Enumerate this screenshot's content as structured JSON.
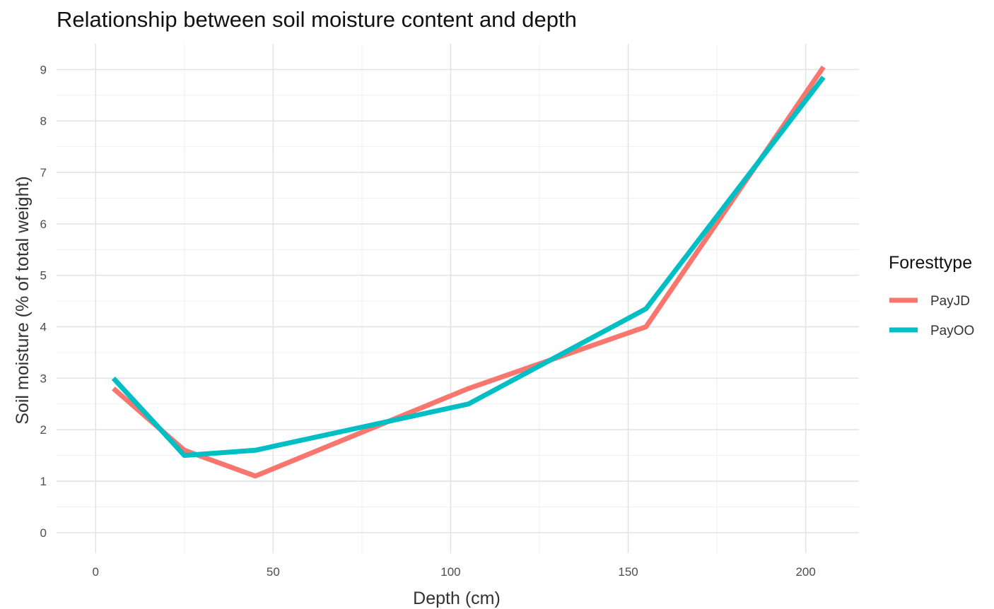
{
  "chart_data": {
    "type": "line",
    "title": "Relationship between soil moisture content and depth",
    "xlabel": "Depth (cm)",
    "ylabel": "Soil moisture (% of total weight)",
    "xlim": [
      -11,
      215
    ],
    "ylim": [
      -0.4,
      9.5
    ],
    "x_ticks": [
      0,
      50,
      100,
      150,
      200
    ],
    "y_ticks": [
      0,
      1,
      2,
      3,
      4,
      5,
      6,
      7,
      8,
      9
    ],
    "grid": true,
    "legend": {
      "title": "Foresttype",
      "placement": "right"
    },
    "series": [
      {
        "name": "PayJD",
        "color": "#F8766D",
        "x": [
          5,
          25,
          45,
          105,
          155,
          205
        ],
        "y": [
          2.8,
          1.6,
          1.1,
          2.8,
          4.0,
          9.05
        ]
      },
      {
        "name": "PayOO",
        "color": "#00BFC4",
        "x": [
          5,
          25,
          45,
          105,
          155,
          205
        ],
        "y": [
          3.0,
          1.5,
          1.6,
          2.5,
          4.35,
          8.85
        ]
      }
    ]
  }
}
